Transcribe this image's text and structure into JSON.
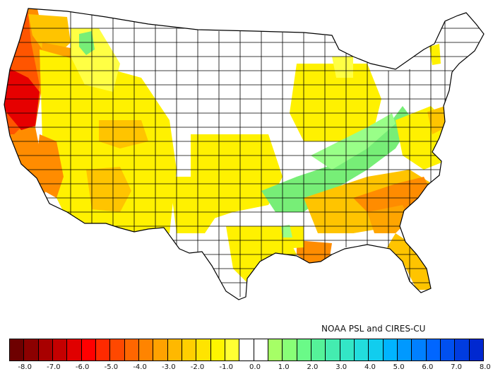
{
  "credit": "NOAA PSL and CIRES-CU",
  "legend": {
    "colors": [
      "#6e0000",
      "#8c0000",
      "#a80000",
      "#c40000",
      "#e00000",
      "#ff0000",
      "#ff2a00",
      "#ff4800",
      "#ff6600",
      "#ff8400",
      "#ffa200",
      "#ffb800",
      "#ffcf00",
      "#ffe400",
      "#fff500",
      "#ffff33",
      "#ffffff",
      "#ffffff",
      "#a6ff66",
      "#88ff77",
      "#6afa88",
      "#55f299",
      "#44ecb0",
      "#33e6c6",
      "#22dddd",
      "#11cdee",
      "#00b4ff",
      "#0099ff",
      "#0080ff",
      "#0066ff",
      "#0050f0",
      "#003ce0",
      "#0028d0"
    ],
    "ticks": [
      "-8.0",
      "-7.0",
      "-6.0",
      "-5.0",
      "-4.0",
      "-3.0",
      "-2.0",
      "-1.0",
      "0.0",
      "1.0",
      "2.0",
      "3.0",
      "4.0",
      "5.0",
      "6.0",
      "7.0",
      "8.0"
    ]
  },
  "map_colors": {
    "deep_red": "#e60000",
    "red": "#ff2a00",
    "red_orange": "#ff5500",
    "orange": "#ff8c00",
    "orange_light": "#ffa500",
    "gold": "#ffc400",
    "yellow": "#fff100",
    "light_yellow": "#ffff44",
    "green": "#77ee77",
    "light_green": "#99ff88",
    "white": "#ffffff",
    "outline": "#000000"
  }
}
